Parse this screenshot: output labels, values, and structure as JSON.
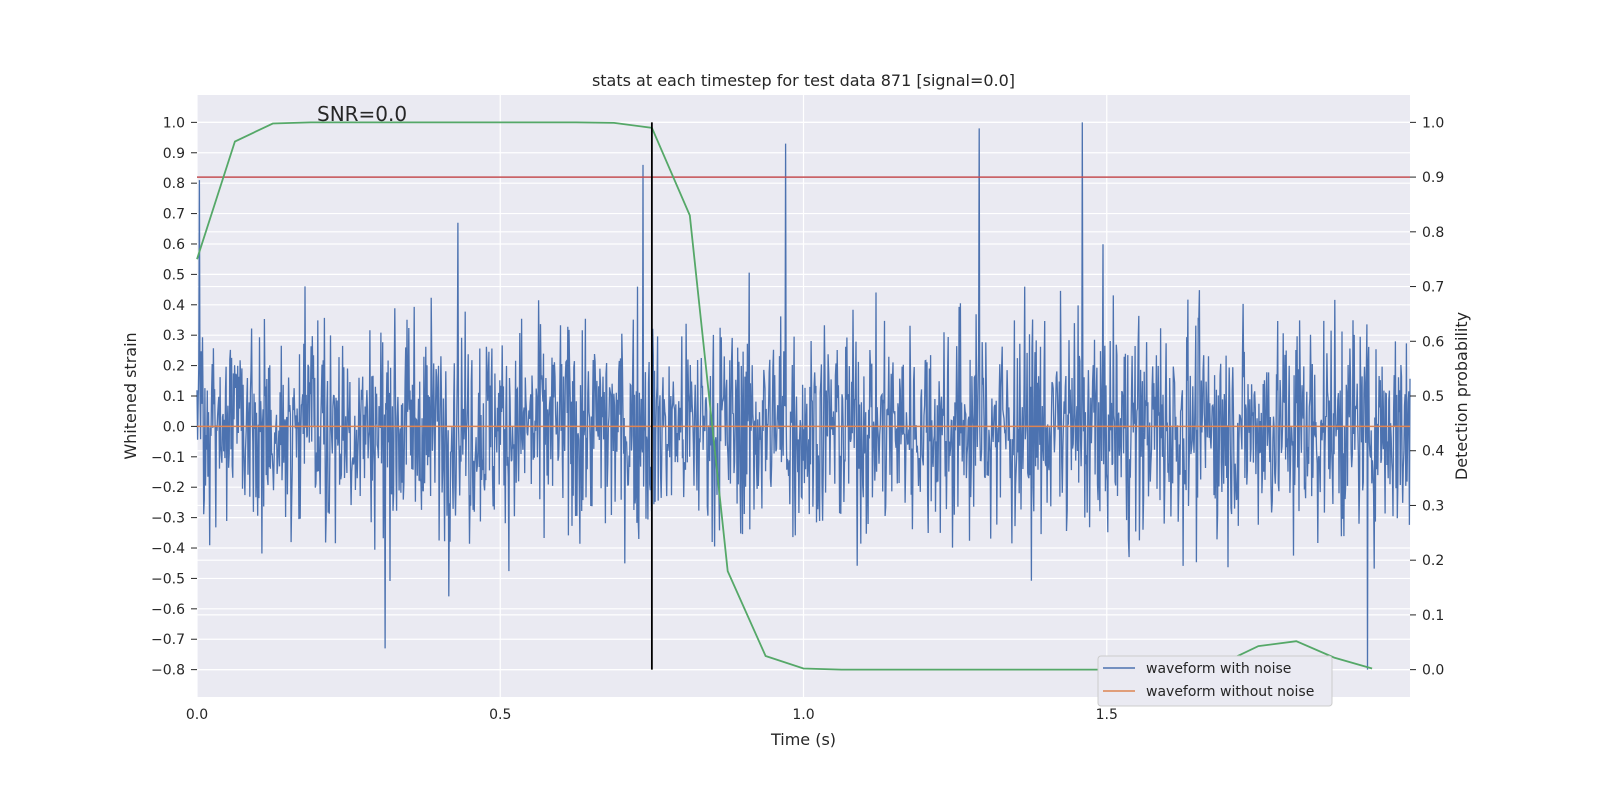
{
  "chart_data": {
    "type": "line",
    "title": "stats at each timestep for test data 871 [signal=0.0]",
    "xlabel": "Time (s)",
    "ylabel": "Whitened strain",
    "y2label": "Detection probability",
    "xlim": [
      0.0,
      2.0
    ],
    "ylim": [
      -0.89,
      1.09
    ],
    "y2lim": [
      -0.05,
      1.05
    ],
    "xticks": [
      0.0,
      0.5,
      1.0,
      1.5
    ],
    "xtick_labels": [
      "0.0",
      "0.5",
      "1.0",
      "1.5"
    ],
    "yticks": [
      1.0,
      0.9,
      0.8,
      0.7,
      0.6,
      0.5,
      0.4,
      0.3,
      0.2,
      0.1,
      0.0,
      -0.1,
      -0.2,
      -0.3,
      -0.4,
      -0.5,
      -0.6,
      -0.7,
      -0.8
    ],
    "ytick_labels": [
      "1.0",
      "0.9",
      "0.8",
      "0.7",
      "0.6",
      "0.5",
      "0.4",
      "0.3",
      "0.2",
      "0.1",
      "0.0",
      "−0.1",
      "−0.2",
      "−0.3",
      "−0.4",
      "−0.5",
      "−0.6",
      "−0.7",
      "−0.8"
    ],
    "y2ticks": [
      1.0,
      0.9,
      0.8,
      0.7,
      0.6,
      0.5,
      0.4,
      0.3,
      0.2,
      0.1,
      0.0
    ],
    "y2tick_labels": [
      "1.0",
      "0.9",
      "0.8",
      "0.7",
      "0.6",
      "0.5",
      "0.4",
      "0.3",
      "0.2",
      "0.1",
      "0.0"
    ],
    "annotation": "SNR=0.0",
    "grid": true,
    "legend_position": "lower right",
    "series": [
      {
        "name": "waveform with noise",
        "color": "#4c72b0",
        "axis": "left",
        "style": "noisy-line",
        "x_range": [
          0.0,
          2.0
        ],
        "peak_values": [
          0.81,
          -0.73,
          0.67,
          0.86,
          0.93,
          0.98,
          1.0,
          -0.8
        ],
        "typical_amplitude": 0.45
      },
      {
        "name": "waveform without noise",
        "color": "#dd8452",
        "axis": "left",
        "x": [
          0.0,
          2.0
        ],
        "y": [
          0.0,
          0.0
        ]
      },
      {
        "name": "",
        "color": "#55a868",
        "axis": "right",
        "x": [
          0.0,
          0.0625,
          0.125,
          0.1875,
          0.25,
          0.3125,
          0.375,
          0.4375,
          0.5,
          0.5625,
          0.625,
          0.6875,
          0.75,
          0.8125,
          0.875,
          0.9375,
          1.0,
          1.0625,
          1.125,
          1.1875,
          1.25,
          1.3125,
          1.375,
          1.4375,
          1.5,
          1.5625,
          1.625,
          1.6875,
          1.75,
          1.8125,
          1.875,
          1.9375
        ],
        "y": [
          0.75,
          0.965,
          0.998,
          1.0,
          1.0,
          1.0,
          1.0,
          1.0,
          1.0,
          1.0,
          1.0,
          0.999,
          0.99,
          0.83,
          0.18,
          0.025,
          0.002,
          0.0,
          0.0,
          0.0,
          0.0,
          0.0,
          0.0,
          0.0,
          0.0,
          0.0,
          0.002,
          0.01,
          0.043,
          0.052,
          0.022,
          0.002
        ]
      }
    ],
    "threshold_line": {
      "axis": "right",
      "y": 0.9,
      "color": "#c44e52"
    },
    "marker_line": {
      "x": 0.75,
      "y_from": 0.0,
      "y_to": 1.0,
      "color": "#000000"
    }
  }
}
